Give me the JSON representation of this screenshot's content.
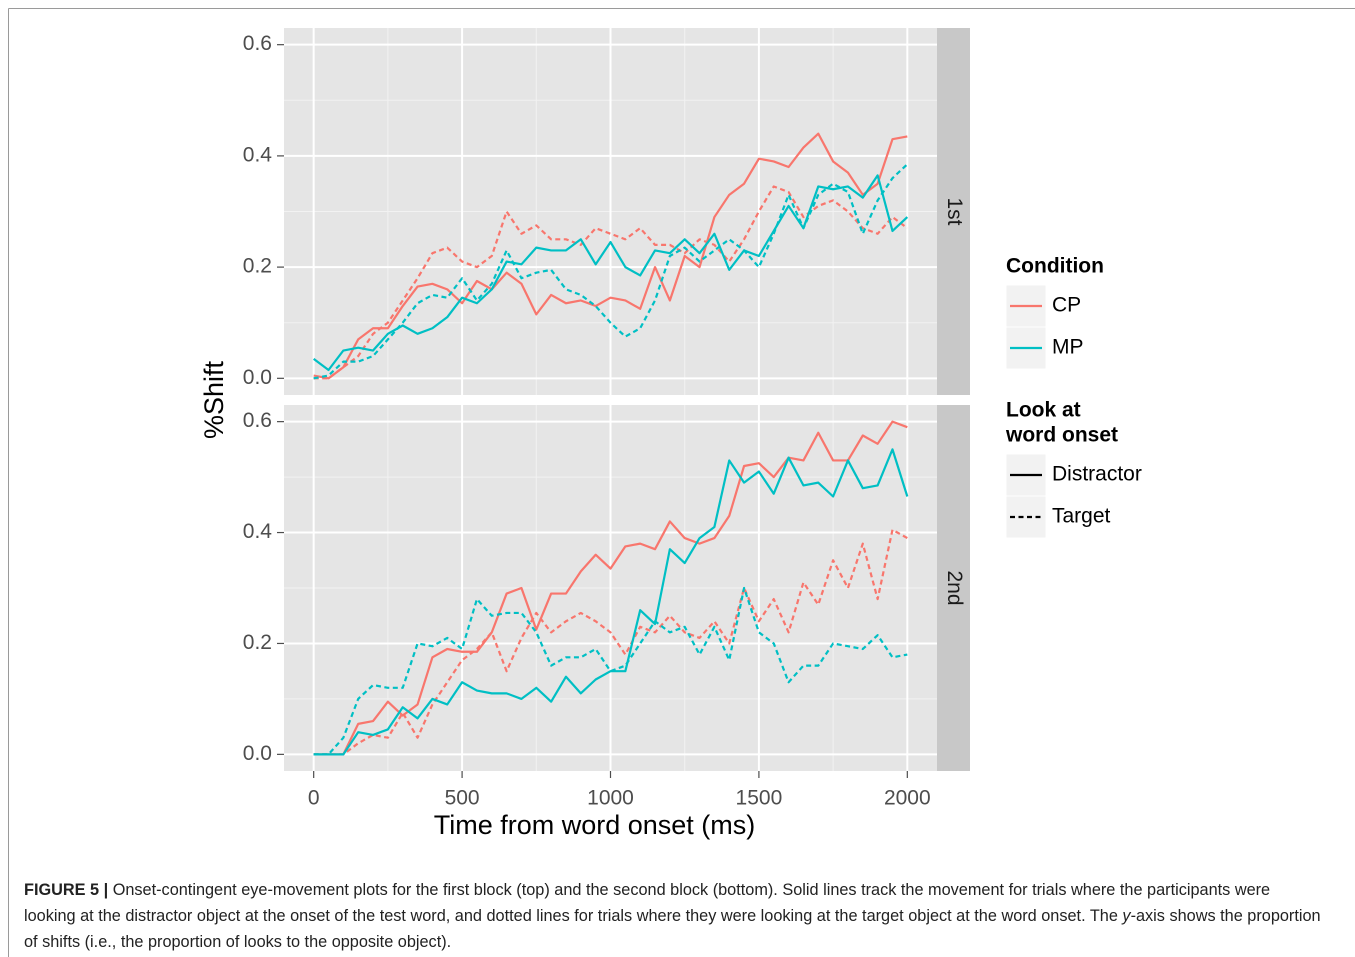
{
  "chart_data": [
    {
      "type": "line",
      "panel": "1st",
      "ylabel": "%Shift",
      "x": [
        0,
        50,
        100,
        150,
        200,
        250,
        300,
        350,
        400,
        450,
        500,
        550,
        600,
        650,
        700,
        750,
        800,
        850,
        900,
        950,
        1000,
        1050,
        1100,
        1150,
        1200,
        1250,
        1300,
        1350,
        1400,
        1450,
        1500,
        1550,
        1600,
        1650,
        1700,
        1750,
        1800,
        1850,
        1900,
        1950,
        2000
      ],
      "xlim": [
        -100,
        2100
      ],
      "xticks": [
        0,
        500,
        1000,
        1500,
        2000
      ],
      "ylim": [
        -0.03,
        0.63
      ],
      "yticks": [
        {
          "value": 0,
          "label": "0.0"
        },
        0.2,
        0.4,
        0.6
      ],
      "grid": true,
      "series": [
        {
          "condition": "CP",
          "look": "Distractor",
          "values": [
            0.005,
            0.0,
            0.02,
            0.07,
            0.09,
            0.09,
            0.13,
            0.165,
            0.17,
            0.16,
            0.135,
            0.175,
            0.16,
            0.19,
            0.17,
            0.115,
            0.15,
            0.135,
            0.14,
            0.13,
            0.145,
            0.14,
            0.125,
            0.2,
            0.14,
            0.22,
            0.2,
            0.29,
            0.33,
            0.35,
            0.395,
            0.39,
            0.38,
            0.415,
            0.44,
            0.39,
            0.37,
            0.33,
            0.35,
            0.43,
            0.435
          ]
        },
        {
          "condition": "CP",
          "look": "Target",
          "values": [
            0.0,
            0.0,
            0.02,
            0.04,
            0.08,
            0.1,
            0.14,
            0.18,
            0.225,
            0.235,
            0.21,
            0.2,
            0.22,
            0.3,
            0.26,
            0.275,
            0.25,
            0.25,
            0.24,
            0.27,
            0.26,
            0.25,
            0.27,
            0.24,
            0.24,
            0.225,
            0.25,
            0.24,
            0.21,
            0.25,
            0.3,
            0.345,
            0.335,
            0.29,
            0.31,
            0.32,
            0.3,
            0.27,
            0.26,
            0.29,
            0.27
          ]
        },
        {
          "condition": "MP",
          "look": "Distractor",
          "values": [
            0.035,
            0.015,
            0.05,
            0.055,
            0.05,
            0.08,
            0.095,
            0.08,
            0.09,
            0.11,
            0.145,
            0.135,
            0.16,
            0.21,
            0.205,
            0.235,
            0.23,
            0.23,
            0.25,
            0.205,
            0.245,
            0.2,
            0.185,
            0.23,
            0.225,
            0.25,
            0.225,
            0.26,
            0.195,
            0.23,
            0.22,
            0.265,
            0.31,
            0.27,
            0.345,
            0.34,
            0.345,
            0.325,
            0.365,
            0.265,
            0.29
          ]
        },
        {
          "condition": "MP",
          "look": "Target",
          "values": [
            0.0,
            0.005,
            0.03,
            0.03,
            0.04,
            0.07,
            0.1,
            0.135,
            0.15,
            0.145,
            0.18,
            0.14,
            0.17,
            0.23,
            0.18,
            0.19,
            0.195,
            0.16,
            0.15,
            0.13,
            0.1,
            0.075,
            0.09,
            0.14,
            0.22,
            0.235,
            0.21,
            0.23,
            0.25,
            0.23,
            0.2,
            0.26,
            0.33,
            0.27,
            0.33,
            0.35,
            0.335,
            0.26,
            0.32,
            0.36,
            0.385
          ]
        }
      ]
    },
    {
      "type": "line",
      "panel": "2nd",
      "xlabel": "Time from word onset (ms)",
      "x": [
        0,
        50,
        100,
        150,
        200,
        250,
        300,
        350,
        400,
        450,
        500,
        550,
        600,
        650,
        700,
        750,
        800,
        850,
        900,
        950,
        1000,
        1050,
        1100,
        1150,
        1200,
        1250,
        1300,
        1350,
        1400,
        1450,
        1500,
        1550,
        1600,
        1650,
        1700,
        1750,
        1800,
        1850,
        1900,
        1950,
        2000
      ],
      "xlim": [
        -100,
        2100
      ],
      "xticks": [
        0,
        500,
        1000,
        1500,
        2000
      ],
      "ylim": [
        -0.03,
        0.63
      ],
      "yticks": [
        {
          "value": 0,
          "label": "0.0"
        },
        0.2,
        0.4,
        0.6
      ],
      "grid": true,
      "series": [
        {
          "condition": "CP",
          "look": "Distractor",
          "values": [
            0,
            0,
            0,
            0.055,
            0.06,
            0.095,
            0.07,
            0.09,
            0.175,
            0.19,
            0.185,
            0.185,
            0.22,
            0.29,
            0.3,
            0.225,
            0.29,
            0.29,
            0.33,
            0.36,
            0.335,
            0.375,
            0.38,
            0.37,
            0.42,
            0.39,
            0.38,
            0.39,
            0.43,
            0.52,
            0.525,
            0.5,
            0.535,
            0.53,
            0.58,
            0.53,
            0.53,
            0.575,
            0.56,
            0.6,
            0.59
          ]
        },
        {
          "condition": "CP",
          "look": "Target",
          "values": [
            0,
            0,
            0,
            0.02,
            0.035,
            0.03,
            0.075,
            0.03,
            0.09,
            0.13,
            0.17,
            0.19,
            0.22,
            0.15,
            0.21,
            0.255,
            0.22,
            0.24,
            0.255,
            0.24,
            0.22,
            0.18,
            0.23,
            0.22,
            0.25,
            0.22,
            0.21,
            0.24,
            0.2,
            0.3,
            0.24,
            0.28,
            0.22,
            0.31,
            0.27,
            0.35,
            0.3,
            0.38,
            0.28,
            0.405,
            0.39
          ]
        },
        {
          "condition": "MP",
          "look": "Distractor",
          "values": [
            0,
            0,
            0,
            0.04,
            0.035,
            0.045,
            0.085,
            0.065,
            0.1,
            0.09,
            0.13,
            0.115,
            0.11,
            0.11,
            0.1,
            0.12,
            0.095,
            0.14,
            0.11,
            0.135,
            0.15,
            0.15,
            0.26,
            0.235,
            0.37,
            0.345,
            0.39,
            0.41,
            0.53,
            0.49,
            0.51,
            0.47,
            0.535,
            0.485,
            0.49,
            0.465,
            0.53,
            0.48,
            0.485,
            0.55,
            0.465
          ]
        },
        {
          "condition": "MP",
          "look": "Target",
          "values": [
            0,
            0,
            0.03,
            0.1,
            0.125,
            0.12,
            0.12,
            0.2,
            0.195,
            0.21,
            0.19,
            0.28,
            0.25,
            0.255,
            0.255,
            0.22,
            0.16,
            0.175,
            0.175,
            0.19,
            0.15,
            0.16,
            0.2,
            0.24,
            0.22,
            0.23,
            0.18,
            0.23,
            0.17,
            0.3,
            0.22,
            0.2,
            0.13,
            0.16,
            0.16,
            0.2,
            0.195,
            0.19,
            0.215,
            0.175,
            0.18
          ]
        }
      ]
    }
  ],
  "legend": [
    {
      "title": [
        "Condition"
      ],
      "entries": [
        {
          "label": "CP",
          "color": "#f8766d"
        },
        {
          "label": "MP",
          "color": "#00bfc4"
        }
      ]
    },
    {
      "title": [
        "Look at",
        "word onset"
      ],
      "entries": [
        {
          "label": "Distractor",
          "dashed": false
        },
        {
          "label": "Target",
          "dashed": true
        }
      ]
    }
  ],
  "caption": {
    "label": "FIGURE 5 |",
    "text": [
      " Onset-contingent eye-movement plots for the first block (top) and the second block (bottom). Solid lines track the movement for trials where the participants were looking at the distractor object at the onset of the test word, and dotted lines for trials where they were looking at the target object at the word onset. The ",
      "y",
      "-axis shows the proportion of shifts (i.e., the proportion of looks to the opposite object)."
    ]
  }
}
